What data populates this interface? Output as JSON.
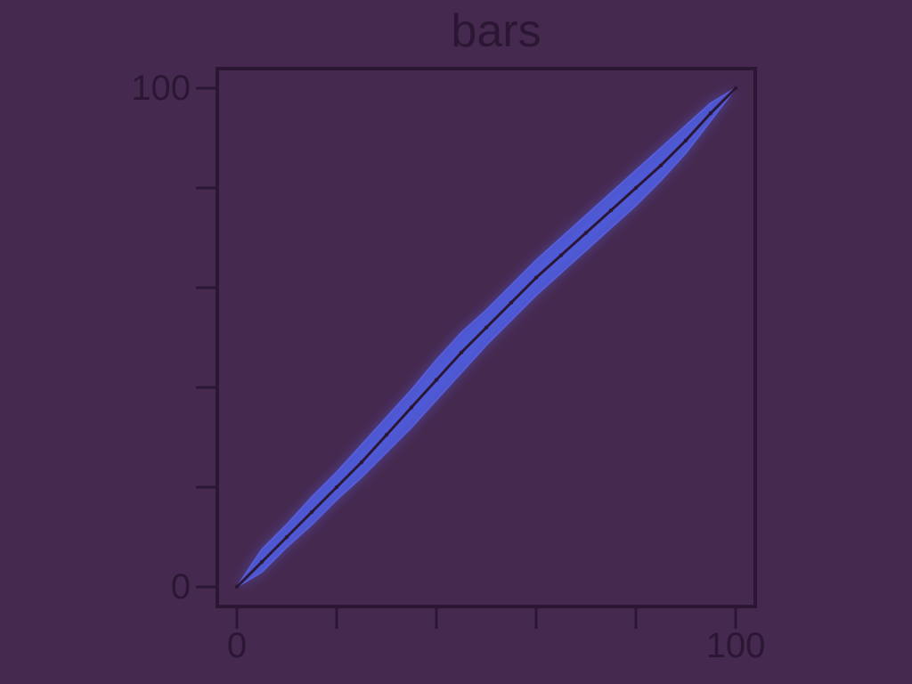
{
  "chart_data": {
    "type": "area",
    "title": "bars",
    "xlabel": "",
    "ylabel": "",
    "xlim": [
      0,
      100
    ],
    "ylim": [
      0,
      100
    ],
    "x_ticks": [
      0,
      20,
      40,
      60,
      80,
      100
    ],
    "y_ticks": [
      0,
      20,
      40,
      60,
      80,
      100
    ],
    "x_tick_labels": [
      "0",
      "",
      "",
      "",
      "",
      "100"
    ],
    "y_tick_labels": [
      "0",
      "",
      "",
      "",
      "",
      "100"
    ],
    "grid": false,
    "legend": "none",
    "series": [
      {
        "x": [
          0,
          5,
          10,
          15,
          20,
          25,
          30,
          35,
          40,
          45,
          50,
          55,
          60,
          65,
          70,
          75,
          80,
          85,
          90,
          95,
          100
        ],
        "center": [
          0,
          5,
          10,
          15,
          20,
          25,
          30.5,
          36,
          41.5,
          47,
          52,
          57,
          62,
          66.5,
          71,
          75.5,
          80,
          84.5,
          89.5,
          95,
          100
        ],
        "lower": [
          0,
          3,
          8,
          12.5,
          17.5,
          22,
          27,
          32,
          37.5,
          43,
          48.5,
          53.5,
          58.5,
          63,
          67.5,
          72,
          76.5,
          81.5,
          87,
          93.5,
          100
        ],
        "upper": [
          0,
          7.5,
          12.5,
          18,
          23,
          28.5,
          34,
          39.5,
          45.5,
          51,
          55.5,
          60.5,
          65.5,
          70,
          74.5,
          79,
          83.5,
          88,
          92.5,
          97,
          100
        ]
      }
    ],
    "colors": {
      "background": "#46294f",
      "axis": "#2b1734",
      "band": "#4f62ee",
      "band_glow": "#5b6cff",
      "center_line": "#2b1734"
    }
  }
}
